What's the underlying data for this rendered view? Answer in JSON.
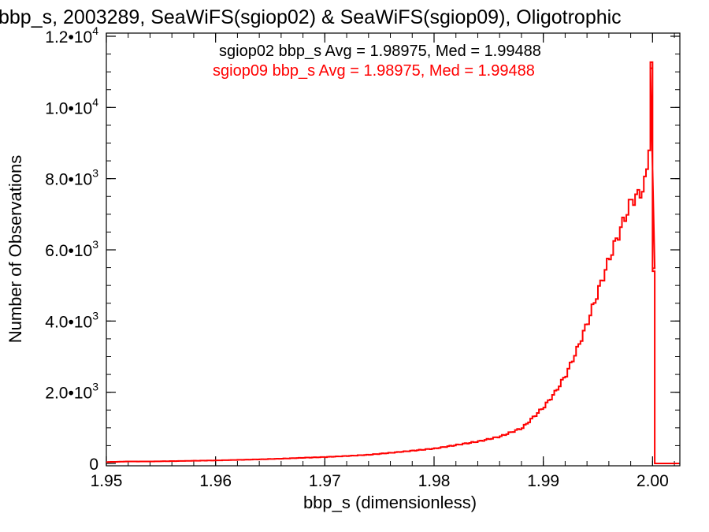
{
  "chart_data": {
    "type": "histogram",
    "title": "bbp_s, 2003289, SeaWiFS(sgiop02) & SeaWiFS(sgiop09), Oligotrophic",
    "xlabel": "bbp_s (dimensionless)",
    "ylabel": "Number of Observations",
    "xlim": [
      1.95,
      2.0025
    ],
    "ylim": [
      0,
      12000
    ],
    "x_ticks": [
      1.95,
      1.96,
      1.97,
      1.98,
      1.99,
      2.0
    ],
    "x_tick_labels": [
      "1.95",
      "1.96",
      "1.97",
      "1.98",
      "1.99",
      "2.00"
    ],
    "y_ticks": [
      {
        "value": 0,
        "mantissa": "0",
        "exponent": ""
      },
      {
        "value": 2000,
        "mantissa": "2.0•10",
        "exponent": "3"
      },
      {
        "value": 4000,
        "mantissa": "4.0•10",
        "exponent": "3"
      },
      {
        "value": 6000,
        "mantissa": "6.0•10",
        "exponent": "3"
      },
      {
        "value": 8000,
        "mantissa": "8.0•10",
        "exponent": "3"
      },
      {
        "value": 10000,
        "mantissa": "1.0•10",
        "exponent": "4"
      },
      {
        "value": 12000,
        "mantissa": "1.2•10",
        "exponent": "4"
      }
    ],
    "grid": false,
    "legend_position": "top-right",
    "series": [
      {
        "name": "sgiop02",
        "color": "#000000",
        "stats_label": "sgiop02 bbp_s Avg = 1.98975, Med = 1.99488",
        "visible_in_plot": false
      },
      {
        "name": "sgiop09",
        "color": "#ff0000",
        "stats_label": "sgiop09 bbp_s Avg = 1.98975, Med = 1.99488",
        "visible_in_plot": true,
        "bin_width": 0.0002,
        "points": [
          [
            1.95,
            40
          ],
          [
            1.952,
            55
          ],
          [
            1.954,
            55
          ],
          [
            1.956,
            65
          ],
          [
            1.958,
            75
          ],
          [
            1.96,
            85
          ],
          [
            1.962,
            100
          ],
          [
            1.964,
            115
          ],
          [
            1.966,
            135
          ],
          [
            1.968,
            160
          ],
          [
            1.97,
            180
          ],
          [
            1.972,
            210
          ],
          [
            1.974,
            245
          ],
          [
            1.976,
            300
          ],
          [
            1.978,
            360
          ],
          [
            1.98,
            420
          ],
          [
            1.982,
            520
          ],
          [
            1.984,
            620
          ],
          [
            1.986,
            760
          ],
          [
            1.988,
            1000
          ],
          [
            1.989,
            1300
          ],
          [
            1.99,
            1600
          ],
          [
            1.991,
            2000
          ],
          [
            1.992,
            2500
          ],
          [
            1.993,
            3200
          ],
          [
            1.994,
            4000
          ],
          [
            1.995,
            4900
          ],
          [
            1.996,
            5800
          ],
          [
            1.997,
            6600
          ],
          [
            1.998,
            7400
          ],
          [
            1.9985,
            7500
          ],
          [
            1.999,
            7700
          ],
          [
            1.9993,
            7950
          ],
          [
            1.9996,
            9000
          ],
          [
            1.9998,
            11100
          ],
          [
            2.0,
            5400
          ],
          [
            2.0002,
            0
          ]
        ]
      }
    ]
  }
}
